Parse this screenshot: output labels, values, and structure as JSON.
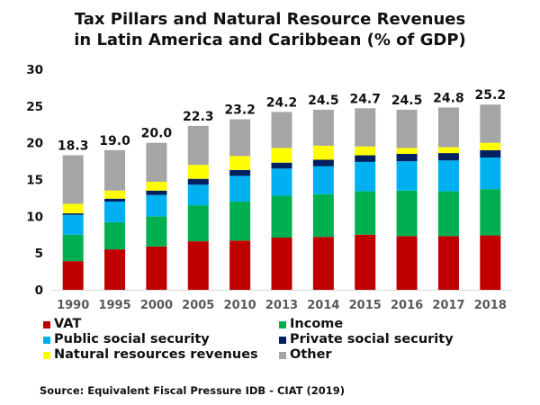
{
  "chart_data": {
    "type": "bar",
    "stacked": true,
    "title": "Tax Pillars and Natural Resource Revenues",
    "subtitle": "in Latin America and Caribbean (% of GDP)",
    "title_lines": [
      "Tax Pillars and Natural Resource Revenues",
      "in Latin America and Caribbean (% of GDP)"
    ],
    "xlabel": "",
    "ylabel": "",
    "ylim": [
      0,
      30
    ],
    "yticks": [
      0,
      5,
      10,
      15,
      20,
      25,
      30
    ],
    "grid": false,
    "legend_position": "bottom",
    "categories": [
      "1990",
      "1995",
      "2000",
      "2005",
      "2010",
      "2013",
      "2014",
      "2015",
      "2016",
      "2017",
      "2018"
    ],
    "totals": [
      "18.3",
      "19.0",
      "20.0",
      "22.3",
      "23.2",
      "24.2",
      "24.5",
      "24.7",
      "24.5",
      "24.8",
      "25.2"
    ],
    "series": [
      {
        "name": "VAT",
        "color": "#C00000",
        "values": [
          3.9,
          5.5,
          5.9,
          6.6,
          6.7,
          7.1,
          7.2,
          7.5,
          7.3,
          7.3,
          7.4
        ]
      },
      {
        "name": "Income",
        "color": "#00B050",
        "values": [
          3.6,
          3.7,
          4.1,
          4.9,
          5.3,
          5.7,
          5.8,
          5.9,
          6.2,
          6.1,
          6.3
        ]
      },
      {
        "name": "Public social security",
        "color": "#00B0F0",
        "values": [
          2.7,
          2.8,
          2.9,
          2.8,
          3.5,
          3.7,
          3.8,
          4.0,
          4.0,
          4.2,
          4.3
        ]
      },
      {
        "name": "Private social security",
        "color": "#002060",
        "values": [
          0.2,
          0.4,
          0.6,
          0.8,
          0.8,
          0.8,
          0.9,
          0.9,
          1.0,
          1.0,
          1.0
        ]
      },
      {
        "name": "Natural resources revenues",
        "color": "#FFFF00",
        "values": [
          1.3,
          1.1,
          1.2,
          1.9,
          1.9,
          2.0,
          1.9,
          1.2,
          0.8,
          0.8,
          1.0
        ]
      },
      {
        "name": "Other",
        "color": "#A5A5A5",
        "values": [
          6.6,
          5.5,
          5.3,
          5.3,
          5.0,
          4.9,
          4.9,
          5.2,
          5.2,
          5.4,
          5.2
        ]
      }
    ],
    "source": "Source: Equivalent Fiscal Pressure IDB - CIAT (2019)"
  },
  "legend": {
    "items": [
      {
        "label": "VAT",
        "color": "#C00000"
      },
      {
        "label": "Income",
        "color": "#00B050"
      },
      {
        "label": "Public social security",
        "color": "#00B0F0"
      },
      {
        "label": "Private social security",
        "color": "#002060"
      },
      {
        "label": "Natural resources revenues",
        "color": "#FFFF00"
      },
      {
        "label": "Other",
        "color": "#A5A5A5"
      }
    ]
  },
  "colors": {
    "axis_label": "#595959",
    "text": "#111111",
    "axis_line": "#D9D9D9"
  }
}
